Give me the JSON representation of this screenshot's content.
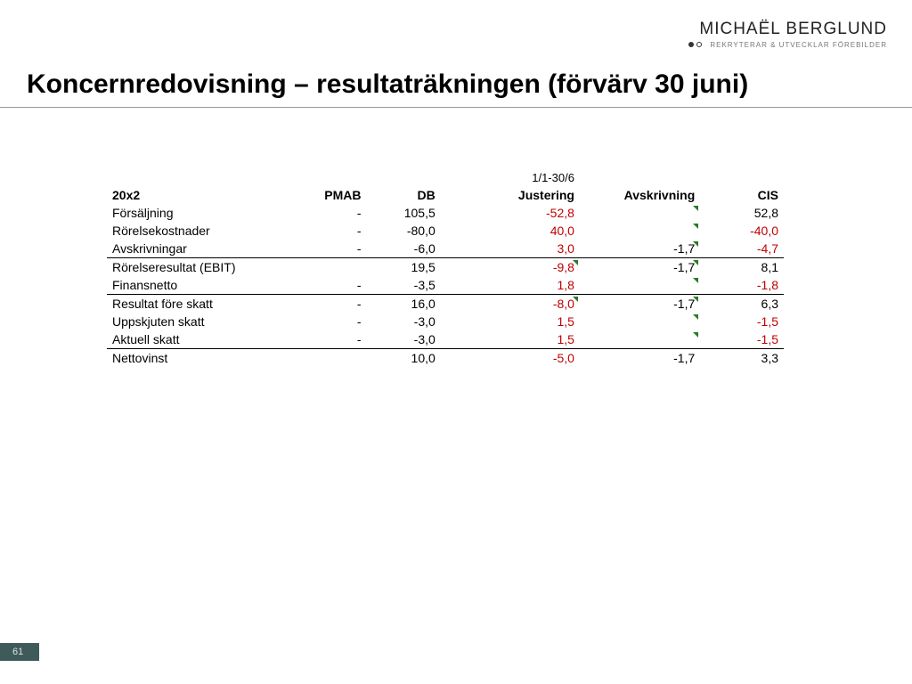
{
  "logo": {
    "main": "MICHAËL BERGLUND",
    "sub": "REKRYTERAR & UTVECKLAR FÖREBILDER"
  },
  "title": "Koncernredovisning – resultaträkningen (förvärv 30 juni)",
  "page_number": "61",
  "table": {
    "super_header": {
      "justering": "1/1-30/6"
    },
    "period_label": "20x2",
    "columns": {
      "pmab": "PMAB",
      "db": "DB",
      "justering": "Justering",
      "avskrivning": "Avskrivning",
      "cis": "CIS"
    },
    "rows": [
      {
        "label": "Försäljning",
        "pmab": "-",
        "db": "105,5",
        "just": "-52,8",
        "just_neg": true,
        "avsk": "",
        "avsk_marker": true,
        "cis": "52,8",
        "cis_neg": false,
        "rule": false
      },
      {
        "label": "Rörelsekostnader",
        "pmab": "-",
        "db": "-80,0",
        "just": "40,0",
        "just_neg": true,
        "avsk": "",
        "avsk_marker": true,
        "cis": "-40,0",
        "cis_neg": true,
        "rule": false
      },
      {
        "label": "Avskrivningar",
        "pmab": "-",
        "db": "-6,0",
        "just": "3,0",
        "just_neg": true,
        "avsk": "-1,7",
        "avsk_marker": true,
        "cis": "-4,7",
        "cis_neg": true,
        "rule": false
      },
      {
        "label": "Rörelseresultat (EBIT)",
        "pmab": "",
        "db": "19,5",
        "just": "-9,8",
        "just_neg": true,
        "just_marker": true,
        "avsk": "-1,7",
        "avsk_marker": true,
        "cis": "8,1",
        "cis_neg": false,
        "rule": true
      },
      {
        "label": "Finansnetto",
        "pmab": "-",
        "db": "-3,5",
        "just": "1,8",
        "just_neg": true,
        "avsk": "",
        "avsk_marker": true,
        "cis": "-1,8",
        "cis_neg": true,
        "rule": false
      },
      {
        "label": "Resultat före skatt",
        "pmab": "-",
        "db": "16,0",
        "just": "-8,0",
        "just_neg": true,
        "just_marker": true,
        "avsk": "-1,7",
        "avsk_marker": true,
        "cis": "6,3",
        "cis_neg": false,
        "rule": true
      },
      {
        "label": "Uppskjuten skatt",
        "pmab": "-",
        "db": "-3,0",
        "just": "1,5",
        "just_neg": true,
        "avsk": "",
        "avsk_marker": true,
        "cis": "-1,5",
        "cis_neg": true,
        "rule": false
      },
      {
        "label": "Aktuell skatt",
        "pmab": "-",
        "db": "-3,0",
        "just": "1,5",
        "just_neg": true,
        "avsk": "",
        "avsk_marker": true,
        "cis": "-1,5",
        "cis_neg": true,
        "rule": false
      },
      {
        "label": "Nettovinst",
        "pmab": "",
        "db": "10,0",
        "just": "-5,0",
        "just_neg": true,
        "avsk": "-1,7",
        "avsk_marker": false,
        "cis": "3,3",
        "cis_neg": false,
        "rule": true
      }
    ]
  },
  "colors": {
    "negative": "#c00000",
    "marker": "#2a7a2a",
    "footer_bg": "#3e5b5a"
  }
}
